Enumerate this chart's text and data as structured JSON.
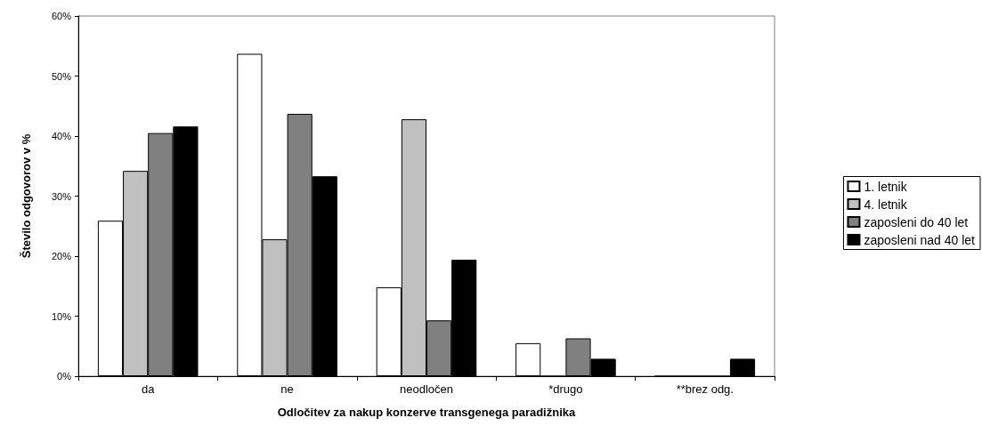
{
  "chart_data": {
    "type": "bar",
    "xlabel": "Odločitev za nakup konzerve transgenega paradižnika",
    "ylabel": "Število odgovorov v %",
    "categories": [
      "da",
      "ne",
      "neodločen",
      "*drugo",
      "**brez odg."
    ],
    "series": [
      {
        "name": "1. letnik",
        "color": "#ffffff",
        "values": [
          25.9,
          53.7,
          14.8,
          5.5,
          0
        ]
      },
      {
        "name": "4. letnik",
        "color": "#c0c0c0",
        "values": [
          34.2,
          22.8,
          42.8,
          0,
          0
        ]
      },
      {
        "name": "zaposleni do 40 let",
        "color": "#808080",
        "values": [
          40.5,
          43.7,
          9.3,
          6.3,
          0
        ]
      },
      {
        "name": "zaposleni nad 40 let",
        "color": "#000000",
        "values": [
          41.6,
          33.3,
          19.4,
          2.9,
          2.9
        ]
      }
    ],
    "ylim": [
      0,
      60
    ],
    "yticks": [
      {
        "value": 0,
        "label": "0%"
      },
      {
        "value": 10,
        "label": "10%"
      },
      {
        "value": 20,
        "label": "20%"
      },
      {
        "value": 30,
        "label": "30%"
      },
      {
        "value": 40,
        "label": "40%"
      },
      {
        "value": 50,
        "label": "50%"
      },
      {
        "value": 60,
        "label": "60%"
      }
    ],
    "grid": false,
    "legend": "right"
  }
}
